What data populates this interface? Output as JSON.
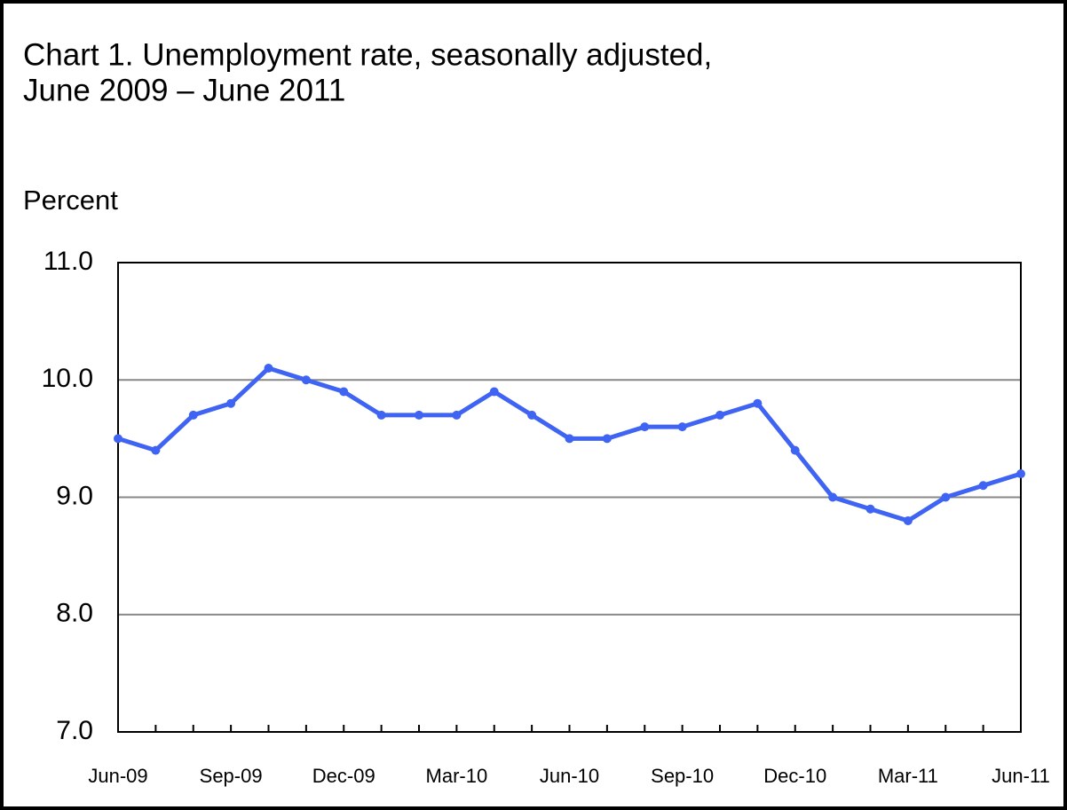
{
  "chart_data": {
    "type": "line",
    "title": [
      "Chart 1. Unemployment rate, seasonally adjusted,",
      "June 2009 – June 2011"
    ],
    "y_label": "Percent",
    "categories": [
      "Jun-09",
      null,
      null,
      "Sep-09",
      null,
      null,
      "Dec-09",
      null,
      null,
      "Mar-10",
      null,
      null,
      "Jun-10",
      null,
      null,
      "Sep-10",
      null,
      null,
      "Dec-10",
      null,
      null,
      "Mar-11",
      null,
      null,
      "Jun-11"
    ],
    "series": [
      {
        "name": "Unemployment rate",
        "color": "#3f63f2",
        "values": [
          9.5,
          9.4,
          9.7,
          9.8,
          10.1,
          10.0,
          9.9,
          9.7,
          9.7,
          9.7,
          9.9,
          9.7,
          9.5,
          9.5,
          9.6,
          9.6,
          9.7,
          9.8,
          9.4,
          9.0,
          8.9,
          8.8,
          9.0,
          9.1,
          9.2
        ]
      }
    ],
    "ylim": [
      7,
      11
    ],
    "yticks": [
      {
        "value": 7,
        "label": "7.0"
      },
      {
        "value": 8,
        "label": "8.0"
      },
      {
        "value": 9,
        "label": "9.0"
      },
      {
        "value": 10,
        "label": "10.0"
      },
      {
        "value": 11,
        "label": "11.0"
      }
    ],
    "grid": true
  }
}
